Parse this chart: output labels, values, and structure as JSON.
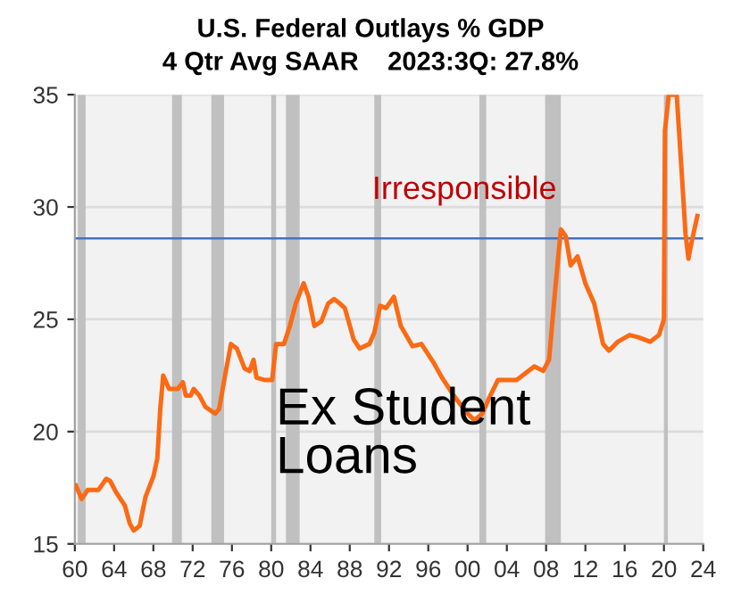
{
  "chart_data": {
    "type": "line",
    "title": "U.S. Federal Outlays % GDP",
    "subtitle": "4 Qtr Avg SAAR    2023:3Q: 27.8%",
    "x": [
      1960.1,
      1960.7,
      1961.3,
      1962.4,
      1963.2,
      1963.6,
      1964.2,
      1965.1,
      1965.6,
      1966.0,
      1966.6,
      1967.2,
      1968.0,
      1968.4,
      1968.7,
      1969.0,
      1969.6,
      1970.5,
      1971.0,
      1971.3,
      1971.8,
      1972.1,
      1972.7,
      1973.3,
      1974.3,
      1974.7,
      1975.3,
      1975.9,
      1976.5,
      1977.3,
      1977.8,
      1978.2,
      1978.5,
      1979.3,
      1980.1,
      1980.5,
      1981.3,
      1981.9,
      1982.5,
      1983.3,
      1983.8,
      1984.4,
      1985.1,
      1985.8,
      1986.4,
      1987.0,
      1987.5,
      1988.4,
      1989.0,
      1990.0,
      1990.5,
      1991.1,
      1991.7,
      1992.5,
      1993.2,
      1994.4,
      1995.3,
      1996.5,
      1997.4,
      1998.6,
      1999.8,
      2000.7,
      2001.5,
      2002.2,
      2003.1,
      2005.0,
      2006.8,
      2007.7,
      2008.3,
      2008.9,
      2009.5,
      2010.0,
      2010.5,
      2011.2,
      2012.0,
      2012.9,
      2013.8,
      2014.4,
      2015.3,
      2016.5,
      2017.4,
      2018.6,
      2019.5,
      2020.0,
      2020.1,
      2020.5,
      2021.3,
      2021.8,
      2022.2,
      2022.5,
      2022.8,
      2023.4
    ],
    "series": [
      {
        "color": "#fb6a14",
        "values": [
          17.6,
          17.0,
          17.4,
          17.4,
          17.9,
          17.8,
          17.3,
          16.7,
          15.9,
          15.6,
          15.8,
          17.1,
          18.0,
          18.8,
          21.0,
          22.5,
          21.9,
          21.9,
          22.2,
          21.6,
          21.6,
          21.9,
          21.6,
          21.1,
          20.8,
          21.0,
          22.5,
          23.9,
          23.7,
          22.8,
          22.7,
          23.2,
          22.4,
          22.3,
          22.3,
          23.9,
          23.9,
          24.7,
          25.7,
          26.6,
          26.0,
          24.7,
          24.9,
          25.7,
          25.9,
          25.7,
          25.5,
          24.1,
          23.7,
          23.9,
          24.4,
          25.6,
          25.5,
          26.0,
          24.7,
          23.8,
          23.9,
          23.1,
          22.4,
          21.6,
          20.9,
          20.5,
          20.8,
          21.5,
          22.3,
          22.3,
          22.9,
          22.7,
          23.2,
          26.2,
          29.0,
          28.7,
          27.4,
          27.8,
          26.6,
          25.7,
          23.9,
          23.6,
          24.0,
          24.3,
          24.2,
          24.0,
          24.3,
          25.0,
          33.4,
          35.0,
          35.0,
          31.6,
          28.8,
          27.7,
          28.4,
          29.6
        ]
      }
    ],
    "xlim": [
      1960,
      2024
    ],
    "ylim": [
      15,
      35
    ],
    "xticks": [
      {
        "value": 1960,
        "label": "60"
      },
      {
        "value": 1964,
        "label": "64"
      },
      {
        "value": 1968,
        "label": "68"
      },
      {
        "value": 1972,
        "label": "72"
      },
      {
        "value": 1976,
        "label": "76"
      },
      {
        "value": 1980,
        "label": "80"
      },
      {
        "value": 1984,
        "label": "84"
      },
      {
        "value": 1988,
        "label": "88"
      },
      {
        "value": 1992,
        "label": "92"
      },
      {
        "value": 1996,
        "label": "96"
      },
      {
        "value": 2000,
        "label": "00"
      },
      {
        "value": 2004,
        "label": "04"
      },
      {
        "value": 2008,
        "label": "08"
      },
      {
        "value": 2012,
        "label": "12"
      },
      {
        "value": 2016,
        "label": "16"
      },
      {
        "value": 2020,
        "label": "20"
      },
      {
        "value": 2024,
        "label": "24"
      }
    ],
    "yticks": [
      15,
      20,
      25,
      30,
      35
    ],
    "grid": "y",
    "line_style": "solid",
    "ref_lines": [
      {
        "axis": "y",
        "value": 28.6,
        "color": "#4472c4"
      }
    ],
    "bands": [
      {
        "axis": "x",
        "from": 1960.3,
        "to": 1961.1,
        "color": "#c0c0c0"
      },
      {
        "axis": "x",
        "from": 1969.9,
        "to": 1970.9,
        "color": "#c0c0c0"
      },
      {
        "axis": "x",
        "from": 1973.9,
        "to": 1975.2,
        "color": "#c0c0c0"
      },
      {
        "axis": "x",
        "from": 1980.0,
        "to": 1980.5,
        "color": "#c0c0c0"
      },
      {
        "axis": "x",
        "from": 1981.5,
        "to": 1982.9,
        "color": "#c0c0c0"
      },
      {
        "axis": "x",
        "from": 1990.5,
        "to": 1991.2,
        "color": "#c0c0c0"
      },
      {
        "axis": "x",
        "from": 2001.2,
        "to": 2001.9,
        "color": "#c0c0c0"
      },
      {
        "axis": "x",
        "from": 2007.9,
        "to": 2009.5,
        "color": "#c0c0c0"
      },
      {
        "axis": "x",
        "from": 2020.0,
        "to": 2020.4,
        "color": "#c0c0c0"
      }
    ],
    "annotations": [
      "Irresponsible",
      "Ex Student\nLoans"
    ]
  }
}
